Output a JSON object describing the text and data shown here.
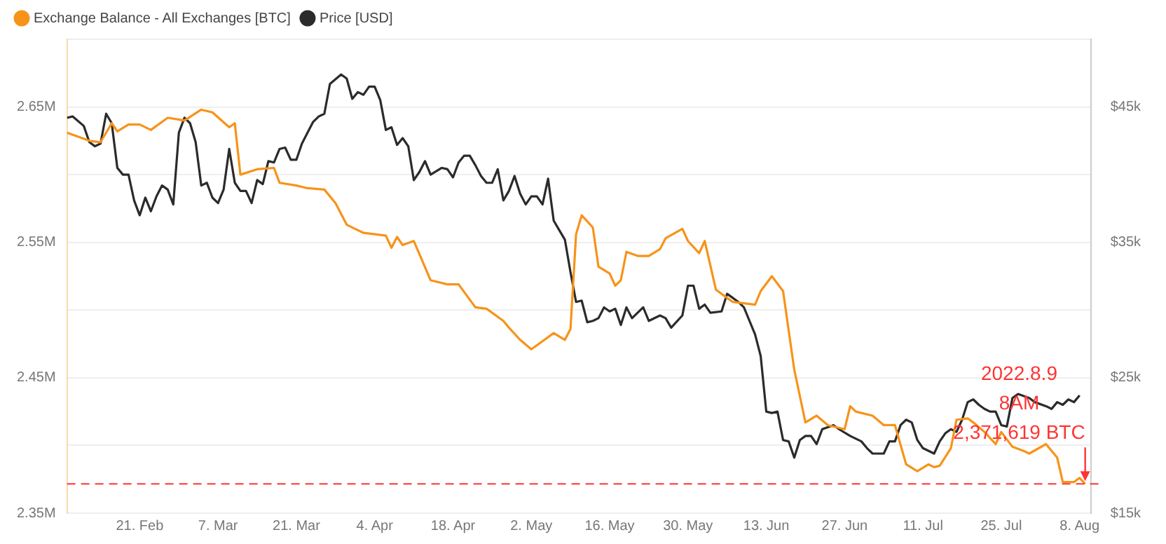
{
  "chart_data": {
    "type": "line",
    "legend": "top left",
    "grid": "y",
    "marker": "none",
    "xlim": [
      "2022-02-08",
      "2022-08-10"
    ],
    "xticks": [
      {
        "value": "2022-02-21",
        "label": "21. Feb"
      },
      {
        "value": "2022-03-07",
        "label": "7. Mar"
      },
      {
        "value": "2022-03-21",
        "label": "21. Mar"
      },
      {
        "value": "2022-04-04",
        "label": "4. Apr"
      },
      {
        "value": "2022-04-18",
        "label": "18. Apr"
      },
      {
        "value": "2022-05-02",
        "label": "2. May"
      },
      {
        "value": "2022-05-16",
        "label": "16. May"
      },
      {
        "value": "2022-05-30",
        "label": "30. May"
      },
      {
        "value": "2022-06-13",
        "label": "13. Jun"
      },
      {
        "value": "2022-06-27",
        "label": "27. Jun"
      },
      {
        "value": "2022-07-11",
        "label": "11. Jul"
      },
      {
        "value": "2022-07-25",
        "label": "25. Jul"
      },
      {
        "value": "2022-08-08",
        "label": "8. Aug"
      }
    ],
    "ylim": [
      2350000,
      2700000
    ],
    "yticks": [
      {
        "value": 2350000,
        "label": "2.35M"
      },
      {
        "value": 2400000,
        "label": null
      },
      {
        "value": 2450000,
        "label": "2.45M"
      },
      {
        "value": 2500000,
        "label": null
      },
      {
        "value": 2550000,
        "label": "2.55M"
      },
      {
        "value": 2600000,
        "label": null
      },
      {
        "value": 2650000,
        "label": "2.65M"
      },
      {
        "value": 2700000,
        "label": null
      }
    ],
    "y2lim": [
      15000,
      50000
    ],
    "y2ticks": [
      {
        "value": 15000,
        "label": "$15k"
      },
      {
        "value": 20000,
        "label": null
      },
      {
        "value": 25000,
        "label": "$25k"
      },
      {
        "value": 30000,
        "label": null
      },
      {
        "value": 35000,
        "label": "$35k"
      },
      {
        "value": 40000,
        "label": null
      },
      {
        "value": 45000,
        "label": "$45k"
      },
      {
        "value": 50000,
        "label": null
      }
    ],
    "series": [
      {
        "name": "Exchange Balance - All Exchanges [BTC]",
        "color": "#f7931a",
        "x": [
          "2022-02-08",
          "2022-02-12",
          "2022-02-14",
          "2022-02-16",
          "2022-02-17",
          "2022-02-19",
          "2022-02-21",
          "2022-02-23",
          "2022-02-26",
          "2022-03-01",
          "2022-03-04",
          "2022-03-06",
          "2022-03-09",
          "2022-03-10",
          "2022-03-11",
          "2022-03-14",
          "2022-03-17",
          "2022-03-18",
          "2022-03-21",
          "2022-03-23",
          "2022-03-26",
          "2022-03-28",
          "2022-03-30",
          "2022-04-02",
          "2022-04-06",
          "2022-04-07",
          "2022-04-08",
          "2022-04-09",
          "2022-04-11",
          "2022-04-14",
          "2022-04-17",
          "2022-04-19",
          "2022-04-22",
          "2022-04-24",
          "2022-04-27",
          "2022-04-28",
          "2022-04-30",
          "2022-05-02",
          "2022-05-04",
          "2022-05-06",
          "2022-05-08",
          "2022-05-09",
          "2022-05-10",
          "2022-05-11",
          "2022-05-13",
          "2022-05-14",
          "2022-05-16",
          "2022-05-17",
          "2022-05-18",
          "2022-05-19",
          "2022-05-21",
          "2022-05-23",
          "2022-05-25",
          "2022-05-26",
          "2022-05-29",
          "2022-05-30",
          "2022-06-01",
          "2022-06-02",
          "2022-06-04",
          "2022-06-05",
          "2022-06-07",
          "2022-06-09",
          "2022-06-11",
          "2022-06-12",
          "2022-06-14",
          "2022-06-16",
          "2022-06-18",
          "2022-06-20",
          "2022-06-22",
          "2022-06-24",
          "2022-06-27",
          "2022-06-28",
          "2022-06-29",
          "2022-07-02",
          "2022-07-04",
          "2022-07-06",
          "2022-07-08",
          "2022-07-10",
          "2022-07-12",
          "2022-07-13",
          "2022-07-14",
          "2022-07-16",
          "2022-07-17",
          "2022-07-19",
          "2022-07-20",
          "2022-07-22",
          "2022-07-24",
          "2022-07-25",
          "2022-07-27",
          "2022-07-29",
          "2022-07-30",
          "2022-08-02",
          "2022-08-04",
          "2022-08-05",
          "2022-08-07",
          "2022-08-08",
          "2022-08-09"
        ],
        "values": [
          2631000,
          2625000,
          2624000,
          2638000,
          2632000,
          2637000,
          2637000,
          2633000,
          2642000,
          2640000,
          2648000,
          2646000,
          2635000,
          2638000,
          2600000,
          2604000,
          2605000,
          2594000,
          2592000,
          2590000,
          2589000,
          2579000,
          2563000,
          2557000,
          2555000,
          2546000,
          2554000,
          2548000,
          2551000,
          2522000,
          2519000,
          2519000,
          2502000,
          2501000,
          2492000,
          2487000,
          2478000,
          2471000,
          2477000,
          2483000,
          2478000,
          2486000,
          2556000,
          2570000,
          2561000,
          2532000,
          2527000,
          2518000,
          2522000,
          2543000,
          2540000,
          2540000,
          2545000,
          2553000,
          2560000,
          2551000,
          2542000,
          2551000,
          2515000,
          2512000,
          2506000,
          2505000,
          2504000,
          2514000,
          2525000,
          2514000,
          2456000,
          2417000,
          2422000,
          2415000,
          2412000,
          2429000,
          2425000,
          2422000,
          2415000,
          2415000,
          2386000,
          2381000,
          2386000,
          2384000,
          2385000,
          2398000,
          2419000,
          2420000,
          2417000,
          2410000,
          2401000,
          2410000,
          2399000,
          2396000,
          2394000,
          2401000,
          2391000,
          2373000,
          2373000,
          2376000,
          2371619
        ]
      },
      {
        "name": "Price [USD]",
        "color": "#2b2b2b",
        "axis": "y2",
        "x": [
          "2022-02-08",
          "2022-02-09",
          "2022-02-11",
          "2022-02-12",
          "2022-02-13",
          "2022-02-14",
          "2022-02-15",
          "2022-02-16",
          "2022-02-17",
          "2022-02-18",
          "2022-02-19",
          "2022-02-20",
          "2022-02-21",
          "2022-02-22",
          "2022-02-23",
          "2022-02-24",
          "2022-02-25",
          "2022-02-26",
          "2022-02-27",
          "2022-02-28",
          "2022-03-01",
          "2022-03-02",
          "2022-03-03",
          "2022-03-04",
          "2022-03-05",
          "2022-03-06",
          "2022-03-07",
          "2022-03-08",
          "2022-03-09",
          "2022-03-10",
          "2022-03-11",
          "2022-03-12",
          "2022-03-13",
          "2022-03-14",
          "2022-03-15",
          "2022-03-16",
          "2022-03-17",
          "2022-03-18",
          "2022-03-19",
          "2022-03-20",
          "2022-03-21",
          "2022-03-22",
          "2022-03-23",
          "2022-03-24",
          "2022-03-25",
          "2022-03-26",
          "2022-03-27",
          "2022-03-29",
          "2022-03-30",
          "2022-03-31",
          "2022-04-01",
          "2022-04-02",
          "2022-04-03",
          "2022-04-04",
          "2022-04-05",
          "2022-04-06",
          "2022-04-07",
          "2022-04-08",
          "2022-04-09",
          "2022-04-10",
          "2022-04-11",
          "2022-04-12",
          "2022-04-13",
          "2022-04-14",
          "2022-04-16",
          "2022-04-17",
          "2022-04-18",
          "2022-04-19",
          "2022-04-20",
          "2022-04-21",
          "2022-04-22",
          "2022-04-23",
          "2022-04-24",
          "2022-04-25",
          "2022-04-26",
          "2022-04-27",
          "2022-04-28",
          "2022-04-29",
          "2022-04-30",
          "2022-05-01",
          "2022-05-02",
          "2022-05-03",
          "2022-05-04",
          "2022-05-05",
          "2022-05-06",
          "2022-05-07",
          "2022-05-08",
          "2022-05-09",
          "2022-05-10",
          "2022-05-11",
          "2022-05-12",
          "2022-05-13",
          "2022-05-14",
          "2022-05-15",
          "2022-05-16",
          "2022-05-17",
          "2022-05-18",
          "2022-05-19",
          "2022-05-20",
          "2022-05-22",
          "2022-05-23",
          "2022-05-25",
          "2022-05-26",
          "2022-05-27",
          "2022-05-29",
          "2022-05-30",
          "2022-05-31",
          "2022-06-01",
          "2022-06-02",
          "2022-06-03",
          "2022-06-05",
          "2022-06-06",
          "2022-06-07",
          "2022-06-08",
          "2022-06-09",
          "2022-06-10",
          "2022-06-11",
          "2022-06-12",
          "2022-06-13",
          "2022-06-14",
          "2022-06-15",
          "2022-06-16",
          "2022-06-17",
          "2022-06-18",
          "2022-06-19",
          "2022-06-20",
          "2022-06-21",
          "2022-06-22",
          "2022-06-23",
          "2022-06-25",
          "2022-06-26",
          "2022-06-28",
          "2022-06-30",
          "2022-07-01",
          "2022-07-02",
          "2022-07-04",
          "2022-07-05",
          "2022-07-06",
          "2022-07-07",
          "2022-07-08",
          "2022-07-09",
          "2022-07-10",
          "2022-07-11",
          "2022-07-13",
          "2022-07-14",
          "2022-07-15",
          "2022-07-16",
          "2022-07-17",
          "2022-07-18",
          "2022-07-19",
          "2022-07-20",
          "2022-07-21",
          "2022-07-22",
          "2022-07-23",
          "2022-07-24",
          "2022-07-25",
          "2022-07-26",
          "2022-07-27",
          "2022-07-28",
          "2022-07-30",
          "2022-07-31",
          "2022-08-02",
          "2022-08-03",
          "2022-08-04",
          "2022-08-05",
          "2022-08-06",
          "2022-08-07",
          "2022-08-08"
        ],
        "values": [
          44200,
          44300,
          43600,
          42400,
          42100,
          42300,
          44500,
          43800,
          40500,
          40000,
          40000,
          38100,
          37000,
          38300,
          37300,
          38400,
          39200,
          38900,
          37800,
          43100,
          44200,
          43800,
          42400,
          39200,
          39400,
          38300,
          37900,
          38900,
          41900,
          39400,
          38800,
          38800,
          37900,
          39600,
          39300,
          41000,
          40900,
          41900,
          42000,
          41100,
          41100,
          42300,
          43100,
          43900,
          44300,
          44500,
          46700,
          47400,
          47100,
          45600,
          46100,
          45900,
          46500,
          46500,
          45500,
          43300,
          43500,
          42200,
          42700,
          42100,
          39600,
          40200,
          41000,
          40000,
          40500,
          40400,
          39800,
          40900,
          41400,
          41400,
          40700,
          39900,
          39400,
          39400,
          40400,
          38100,
          38800,
          39900,
          38600,
          37800,
          38400,
          38400,
          37800,
          39700,
          36600,
          35900,
          35200,
          32800,
          30600,
          30700,
          29100,
          29200,
          29400,
          30200,
          29900,
          30100,
          28900,
          30200,
          29400,
          30200,
          29200,
          29600,
          29400,
          28700,
          29600,
          31800,
          31800,
          30100,
          30400,
          29800,
          29900,
          31200,
          30900,
          30600,
          30200,
          29200,
          28200,
          26600,
          22500,
          22400,
          22500,
          20400,
          20300,
          19100,
          20400,
          20700,
          20700,
          20100,
          21200,
          21500,
          21200,
          20700,
          20300,
          19800,
          19400,
          19400,
          20300,
          20300,
          21500,
          21900,
          21700,
          20400,
          19800,
          19400,
          20300,
          20900,
          21200,
          21000,
          21900,
          23200,
          23400,
          23000,
          22700,
          22500,
          22500,
          21500,
          21400,
          23500,
          23800,
          23500,
          23200,
          22900,
          22700,
          23200,
          23000,
          23400,
          23200,
          23700
        ]
      }
    ],
    "ref_lines": [
      {
        "axis": "y",
        "value": 2371619,
        "color": "#ff3333",
        "line_style": "dashed"
      }
    ],
    "annotations": [
      {
        "text": "2022.8.9\n8AM\n2,371,619 BTC",
        "x": "2022-08-09",
        "y": 2371619
      }
    ]
  }
}
